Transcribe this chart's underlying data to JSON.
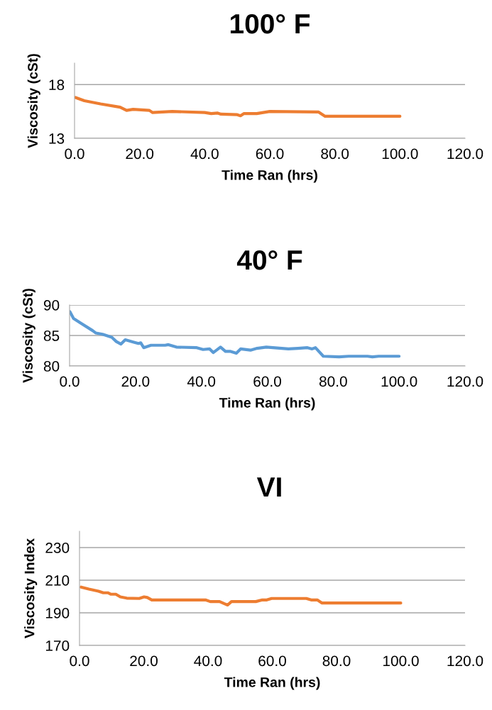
{
  "chart_data": [
    {
      "type": "line",
      "title": "100° F",
      "xlabel": "Time Ran (hrs)",
      "ylabel": "Viscosity (cSt)",
      "xlim": [
        0,
        120
      ],
      "xticks": [
        {
          "value": 0,
          "label": "0.0"
        },
        {
          "value": 20,
          "label": "20.0"
        },
        {
          "value": 40,
          "label": "40.0"
        },
        {
          "value": 60,
          "label": "60.0"
        },
        {
          "value": 80,
          "label": "80.0"
        },
        {
          "value": 100,
          "label": "100.0"
        },
        {
          "value": 120,
          "label": "120.0"
        }
      ],
      "ylim": [
        13,
        20
      ],
      "yticks": [
        13,
        18
      ],
      "grid": "y",
      "legend": false,
      "series": [
        {
          "color": "#ed7d31",
          "x": [
            0.3,
            3,
            8,
            14,
            16,
            18,
            23,
            24,
            30,
            40,
            42,
            44,
            45,
            50,
            51,
            52,
            56,
            60,
            75,
            77,
            100
          ],
          "values": [
            16.8,
            16.5,
            16.2,
            15.9,
            15.6,
            15.7,
            15.6,
            15.4,
            15.5,
            15.4,
            15.3,
            15.35,
            15.25,
            15.2,
            15.1,
            15.3,
            15.3,
            15.5,
            15.45,
            15.05,
            15.05
          ]
        }
      ]
    },
    {
      "type": "line",
      "title": "40° F",
      "xlabel": "Time Ran (hrs)",
      "ylabel": "Viscosity (cSt)",
      "xlim": [
        0,
        120
      ],
      "xticks": [
        {
          "value": 0,
          "label": "0.0"
        },
        {
          "value": 20,
          "label": "20.0"
        },
        {
          "value": 40,
          "label": "40.0"
        },
        {
          "value": 60,
          "label": "60.0"
        },
        {
          "value": 80,
          "label": "80.0"
        },
        {
          "value": 100,
          "label": "100.0"
        },
        {
          "value": 120,
          "label": "120.0"
        }
      ],
      "ylim": [
        80,
        90
      ],
      "yticks": [
        80,
        85,
        90
      ],
      "grid": "y",
      "legend": false,
      "series": [
        {
          "color": "#5b9bd5",
          "x": [
            0.1,
            1.2,
            3.2,
            7,
            8,
            10,
            12.8,
            14.2,
            15.6,
            16.9,
            19.5,
            20.9,
            21.6,
            22.5,
            24.7,
            29,
            30,
            32.4,
            38.6,
            40.5,
            42.5,
            43.6,
            45.8,
            47.3,
            48.7,
            50.6,
            51.9,
            54.9,
            56.9,
            59.7,
            66.4,
            69.3,
            72.2,
            73.6,
            74.6,
            77,
            81.8,
            84.7,
            90.4,
            91.9,
            93.8,
            100
          ],
          "values": [
            88.9,
            87.8,
            87.1,
            85.8,
            85.4,
            85.2,
            84.7,
            84.0,
            83.6,
            84.3,
            83.9,
            83.7,
            83.8,
            83.0,
            83.4,
            83.4,
            83.5,
            83.1,
            83.0,
            82.7,
            82.8,
            82.2,
            83.1,
            82.4,
            82.4,
            82.1,
            82.8,
            82.6,
            82.9,
            83.1,
            82.8,
            82.9,
            83.0,
            82.8,
            83.0,
            81.6,
            81.5,
            81.6,
            81.6,
            81.5,
            81.6,
            81.6
          ]
        }
      ]
    },
    {
      "type": "line",
      "title": "VI",
      "xlabel": "Time Ran (hrs)",
      "ylabel": "Viscosity Index",
      "xlim": [
        0,
        120
      ],
      "xticks": [
        {
          "value": 0,
          "label": "0.0"
        },
        {
          "value": 20,
          "label": "20.0"
        },
        {
          "value": 40,
          "label": "40.0"
        },
        {
          "value": 60,
          "label": "60.0"
        },
        {
          "value": 80,
          "label": "80.0"
        },
        {
          "value": 100,
          "label": "100.0"
        },
        {
          "value": 120,
          "label": "120.0"
        }
      ],
      "ylim": [
        170,
        240
      ],
      "yticks": [
        170,
        190,
        210,
        230
      ],
      "grid": "y",
      "legend": false,
      "series": [
        {
          "color": "#ed7d31",
          "x": [
            0.5,
            2.9,
            5.9,
            7.4,
            8.8,
            9.8,
            11.3,
            12.7,
            14.7,
            18.6,
            20.1,
            21.1,
            22.5,
            32.4,
            39.2,
            40.7,
            43.6,
            45.1,
            46.1,
            47.3,
            54.9,
            56.9,
            58.3,
            59.8,
            70.6,
            72.1,
            74,
            75.5,
            100
          ],
          "values": [
            205.8,
            204.6,
            203.3,
            202.3,
            202.3,
            201.4,
            201.4,
            199.8,
            199.0,
            198.8,
            199.8,
            199.4,
            197.9,
            197.9,
            197.9,
            196.9,
            196.9,
            195.6,
            194.8,
            196.9,
            196.9,
            197.9,
            197.9,
            198.8,
            198.8,
            197.9,
            197.9,
            196.0,
            196.0
          ]
        }
      ]
    }
  ]
}
